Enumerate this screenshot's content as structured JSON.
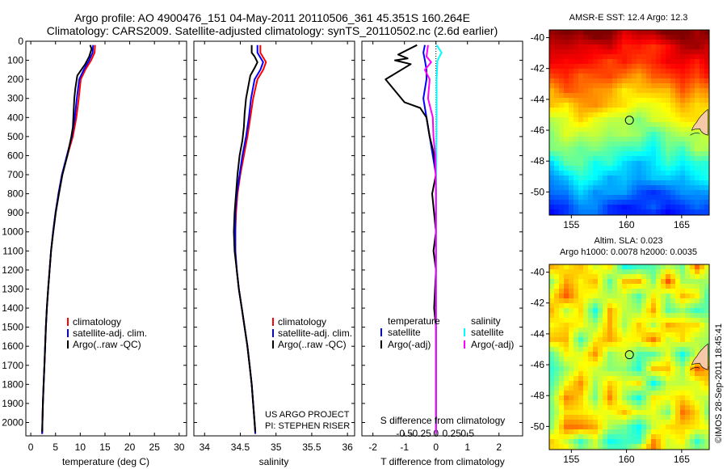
{
  "header": {
    "line1": "Argo profile: AO 4900476_151 04-May-2011 20110506_361 45.351S 160.264E",
    "line2": "Climatology: CARS2009. Satellite-adjusted climatology: synTS_20110502.nc (2.6d earlier)"
  },
  "colors": {
    "climatology": "#ff0000",
    "satellite": "#0000ff",
    "argo": "#000000",
    "sat_diff": "#00ffff",
    "argo_s_diff": "#ff00ff"
  },
  "chart_data": [
    {
      "type": "line",
      "id": "temperature",
      "xlabel": "temperature (deg C)",
      "ylabel": "",
      "xlim": [
        -1,
        31.5
      ],
      "ylim": [
        2070,
        0
      ],
      "xticks": [
        0,
        5,
        10,
        15,
        20,
        25,
        30
      ],
      "yticks": [
        0,
        100,
        200,
        300,
        400,
        500,
        600,
        700,
        800,
        900,
        1000,
        1100,
        1200,
        1300,
        1400,
        1500,
        1600,
        1700,
        1800,
        1900,
        2000
      ],
      "legend": {
        "position": "lower-left",
        "entries": [
          "climatology",
          "satellite-adj. clim.",
          "Argo(..raw -QC)"
        ]
      },
      "series": [
        {
          "name": "climatology",
          "color": "#ff0000",
          "points": [
            [
              13.0,
              20
            ],
            [
              12.9,
              60
            ],
            [
              12.2,
              100
            ],
            [
              11.0,
              150
            ],
            [
              10.1,
              200
            ],
            [
              9.7,
              300
            ],
            [
              9.2,
              400
            ],
            [
              8.5,
              500
            ],
            [
              7.4,
              600
            ],
            [
              6.3,
              700
            ],
            [
              5.6,
              800
            ],
            [
              5.0,
              900
            ],
            [
              4.5,
              1000
            ],
            [
              4.1,
              1100
            ],
            [
              3.8,
              1200
            ],
            [
              3.5,
              1300
            ],
            [
              3.25,
              1400
            ],
            [
              3.05,
              1500
            ],
            [
              2.9,
              1600
            ],
            [
              2.75,
              1700
            ],
            [
              2.6,
              1800
            ],
            [
              2.45,
              1900
            ],
            [
              2.35,
              2000
            ],
            [
              2.3,
              2060
            ]
          ]
        },
        {
          "name": "satellite-adj. clim.",
          "color": "#0000ff",
          "points": [
            [
              12.6,
              20
            ],
            [
              12.5,
              60
            ],
            [
              11.8,
              100
            ],
            [
              10.7,
              150
            ],
            [
              9.8,
              200
            ],
            [
              9.3,
              300
            ],
            [
              8.9,
              400
            ],
            [
              8.3,
              500
            ],
            [
              7.3,
              600
            ],
            [
              6.3,
              700
            ],
            [
              5.6,
              800
            ],
            [
              5.0,
              900
            ],
            [
              4.5,
              1000
            ],
            [
              4.1,
              1100
            ],
            [
              3.8,
              1200
            ],
            [
              3.5,
              1300
            ],
            [
              3.25,
              1400
            ],
            [
              3.05,
              1500
            ],
            [
              2.9,
              1600
            ],
            [
              2.75,
              1700
            ],
            [
              2.6,
              1800
            ],
            [
              2.45,
              1900
            ],
            [
              2.35,
              2000
            ],
            [
              2.3,
              2060
            ]
          ]
        },
        {
          "name": "Argo(..raw -QC)",
          "color": "#000000",
          "points": [
            [
              12.0,
              20
            ],
            [
              12.3,
              40
            ],
            [
              11.8,
              80
            ],
            [
              11.0,
              120
            ],
            [
              9.4,
              180
            ],
            [
              9.0,
              250
            ],
            [
              8.8,
              300
            ],
            [
              8.7,
              350
            ],
            [
              8.5,
              450
            ],
            [
              8.2,
              500
            ],
            [
              7.4,
              600
            ],
            [
              6.4,
              700
            ],
            [
              5.7,
              800
            ],
            [
              5.05,
              900
            ],
            [
              4.55,
              1000
            ],
            [
              4.1,
              1100
            ],
            [
              3.8,
              1200
            ],
            [
              3.5,
              1300
            ],
            [
              3.25,
              1400
            ],
            [
              3.05,
              1500
            ],
            [
              2.9,
              1600
            ],
            [
              2.75,
              1700
            ],
            [
              2.6,
              1800
            ],
            [
              2.45,
              1900
            ],
            [
              2.35,
              2000
            ],
            [
              2.3,
              2050
            ]
          ]
        }
      ]
    },
    {
      "type": "line",
      "id": "salinity",
      "xlabel": "salinity",
      "ylabel": "",
      "xlim": [
        33.85,
        36.1
      ],
      "ylim": [
        2070,
        0
      ],
      "xticks": [
        34,
        34.5,
        35,
        35.5,
        36
      ],
      "xticklabels": [
        "34",
        "34.5",
        "35",
        "35.5",
        "36"
      ],
      "legend": {
        "position": "lower-right",
        "entries": [
          "climatology",
          "satellite-adj. clim.",
          "Argo(..raw -QC)"
        ]
      },
      "annotations": [
        "US ARGO PROJECT",
        "PI: STEPHEN RISER"
      ],
      "series": [
        {
          "name": "climatology",
          "color": "#ff0000",
          "points": [
            [
              34.78,
              20
            ],
            [
              34.78,
              60
            ],
            [
              34.86,
              110
            ],
            [
              34.82,
              150
            ],
            [
              34.74,
              200
            ],
            [
              34.68,
              300
            ],
            [
              34.64,
              400
            ],
            [
              34.6,
              500
            ],
            [
              34.55,
              600
            ],
            [
              34.5,
              700
            ],
            [
              34.46,
              800
            ],
            [
              34.44,
              900
            ],
            [
              34.43,
              1000
            ],
            [
              34.43,
              1100
            ],
            [
              34.45,
              1200
            ],
            [
              34.48,
              1300
            ],
            [
              34.52,
              1400
            ],
            [
              34.56,
              1500
            ],
            [
              34.6,
              1600
            ],
            [
              34.63,
              1700
            ],
            [
              34.66,
              1800
            ],
            [
              34.68,
              1900
            ],
            [
              34.7,
              2000
            ],
            [
              34.71,
              2060
            ]
          ]
        },
        {
          "name": "satellite-adj. clim.",
          "color": "#0000ff",
          "points": [
            [
              34.74,
              20
            ],
            [
              34.74,
              60
            ],
            [
              34.82,
              110
            ],
            [
              34.78,
              150
            ],
            [
              34.7,
              200
            ],
            [
              34.65,
              300
            ],
            [
              34.62,
              400
            ],
            [
              34.58,
              500
            ],
            [
              34.53,
              600
            ],
            [
              34.49,
              700
            ],
            [
              34.45,
              800
            ],
            [
              34.43,
              900
            ],
            [
              34.43,
              1000
            ],
            [
              34.43,
              1100
            ],
            [
              34.45,
              1200
            ],
            [
              34.48,
              1300
            ],
            [
              34.52,
              1400
            ],
            [
              34.56,
              1500
            ],
            [
              34.6,
              1600
            ],
            [
              34.63,
              1700
            ],
            [
              34.66,
              1800
            ],
            [
              34.68,
              1900
            ],
            [
              34.7,
              2000
            ],
            [
              34.71,
              2060
            ]
          ]
        },
        {
          "name": "Argo(..raw -QC)",
          "color": "#000000",
          "points": [
            [
              34.66,
              20
            ],
            [
              34.66,
              60
            ],
            [
              34.7,
              80
            ],
            [
              34.74,
              110
            ],
            [
              34.7,
              140
            ],
            [
              34.64,
              180
            ],
            [
              34.62,
              220
            ],
            [
              34.58,
              300
            ],
            [
              34.56,
              380
            ],
            [
              34.55,
              450
            ],
            [
              34.53,
              520
            ],
            [
              34.49,
              600
            ],
            [
              34.46,
              700
            ],
            [
              34.44,
              800
            ],
            [
              34.42,
              900
            ],
            [
              34.41,
              1000
            ],
            [
              34.42,
              1100
            ],
            [
              34.45,
              1200
            ],
            [
              34.48,
              1300
            ],
            [
              34.52,
              1400
            ],
            [
              34.56,
              1500
            ],
            [
              34.6,
              1600
            ],
            [
              34.63,
              1700
            ],
            [
              34.66,
              1800
            ],
            [
              34.68,
              1900
            ],
            [
              34.7,
              2000
            ],
            [
              34.71,
              2050
            ]
          ]
        }
      ]
    },
    {
      "type": "line",
      "id": "difference",
      "xlabel": "T difference from climatology",
      "title_bottom": "S difference from climatology",
      "xlim": [
        -2.35,
        2.75
      ],
      "ylim": [
        2070,
        0
      ],
      "xticks": [
        -2,
        -1,
        0,
        1,
        2
      ],
      "s_xticks": [
        -0.5,
        -0.25,
        0,
        0.25,
        0.5
      ],
      "s_xticklabels": [
        "-0.5",
        "-0.25",
        "0",
        "0.25",
        "0.5"
      ],
      "legend": {
        "position": "lower-center",
        "temperature_title": "temperature",
        "salinity_title": "salinity",
        "entries": [
          "satellite",
          "Argo(-adj)",
          "satellite",
          "Argo(-adj)"
        ]
      },
      "series": [
        {
          "name": "temperature satellite",
          "color": "#0000ff",
          "points": [
            [
              -0.35,
              20
            ],
            [
              -0.4,
              60
            ],
            [
              -0.35,
              100
            ],
            [
              -0.3,
              150
            ],
            [
              -0.3,
              200
            ],
            [
              -0.4,
              300
            ],
            [
              -0.3,
              400
            ],
            [
              -0.2,
              500
            ],
            [
              -0.1,
              600
            ],
            [
              0,
              700
            ],
            [
              0,
              900
            ],
            [
              0,
              2060
            ]
          ]
        },
        {
          "name": "temperature Argo(-adj)",
          "color": "#000000",
          "points": [
            [
              -0.6,
              20
            ],
            [
              -1.2,
              70
            ],
            [
              -0.9,
              90
            ],
            [
              -1.3,
              100
            ],
            [
              -0.8,
              120
            ],
            [
              -1.6,
              200
            ],
            [
              -1.3,
              260
            ],
            [
              -1.0,
              320
            ],
            [
              -0.5,
              350
            ],
            [
              -0.3,
              400
            ],
            [
              -0.2,
              500
            ],
            [
              -0.05,
              600
            ],
            [
              0,
              700
            ],
            [
              -0.12,
              800
            ],
            [
              0,
              1000
            ],
            [
              -0.08,
              1100
            ],
            [
              0,
              1200
            ],
            [
              -0.06,
              1400
            ],
            [
              0,
              1500
            ],
            [
              0,
              2050
            ]
          ]
        },
        {
          "name": "salinity satellite",
          "color": "#00ffff",
          "points": [
            [
              0.02,
              20
            ],
            [
              0.18,
              60
            ],
            [
              0.05,
              100
            ],
            [
              0.02,
              200
            ],
            [
              0.02,
              400
            ],
            [
              0.01,
              600
            ],
            [
              0,
              800
            ],
            [
              0,
              2060
            ]
          ]
        },
        {
          "name": "salinity Argo(-adj)",
          "color": "#ff00ff",
          "points": [
            [
              -0.25,
              20
            ],
            [
              -0.3,
              80
            ],
            [
              -0.15,
              110
            ],
            [
              -0.35,
              150
            ],
            [
              -0.2,
              200
            ],
            [
              -0.25,
              300
            ],
            [
              -0.1,
              400
            ],
            [
              -0.08,
              500
            ],
            [
              -0.02,
              600
            ],
            [
              0,
              800
            ],
            [
              0,
              2060
            ]
          ]
        }
      ]
    },
    {
      "type": "heatmap",
      "id": "sst_map",
      "title": "AMSR-E SST: 12.4 Argo: 12.3",
      "xlim": [
        153,
        167.5
      ],
      "ylim": [
        -51.5,
        -39.5
      ],
      "xticks": [
        155,
        160,
        165
      ],
      "yticks": [
        -40,
        -42,
        -44,
        -46,
        -48,
        -50
      ],
      "marker": {
        "lon": 160.264,
        "lat": -45.351
      }
    },
    {
      "type": "heatmap",
      "id": "sla_map",
      "title": "Altim. SLA: 0.023",
      "subtitle": "Argo h1000: 0.0078 h2000: 0.0035",
      "xlim": [
        153,
        167.5
      ],
      "ylim": [
        -51.5,
        -39.5
      ],
      "xticks": [
        155,
        160,
        165
      ],
      "yticks": [
        -40,
        -42,
        -44,
        -46,
        -48,
        -50
      ],
      "marker": {
        "lon": 160.264,
        "lat": -45.351
      }
    }
  ],
  "footer": {
    "stamp": "©IMOS 28-Sep-2011 18:45:41"
  }
}
